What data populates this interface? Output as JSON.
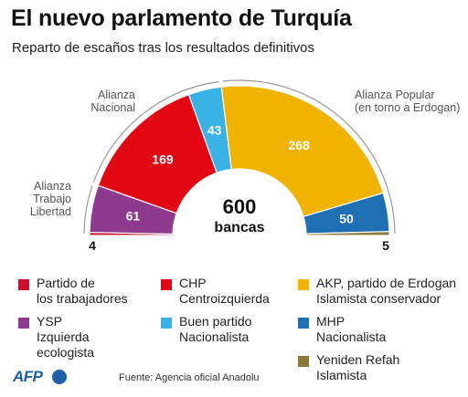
{
  "title": "El nuevo parlamento de Turquía",
  "subtitle": "Reparto de escaños tras los resultados definitivos",
  "total_value": "600",
  "total_label": "bancas",
  "chart_data": {
    "type": "pie",
    "variant": "half-donut (parliament)",
    "total": 600,
    "slices": [
      {
        "name": "Partido de los trabajadores",
        "value": 4,
        "color": "#c8102e",
        "label": "4"
      },
      {
        "name": "YSP Izquierda ecologista",
        "value": 61,
        "color": "#8e3a8e",
        "label": "61"
      },
      {
        "name": "CHP Centroizquierda",
        "value": 169,
        "color": "#e30613",
        "label": "169"
      },
      {
        "name": "Buen partido Nacionalista",
        "value": 43,
        "color": "#39b2e6",
        "label": "43"
      },
      {
        "name": "AKP, partido de Erdogan Islamista conservador",
        "value": 268,
        "color": "#f0b400",
        "label": "268"
      },
      {
        "name": "MHP Nacionalista",
        "value": 50,
        "color": "#1f6fb3",
        "label": "50"
      },
      {
        "name": "Yeniden Refah Islamista",
        "value": 5,
        "color": "#8a7a3a",
        "label": "5"
      }
    ],
    "alliances": [
      {
        "label": "Alianza\nTrabajo\nLibertad"
      },
      {
        "label": "Alianza\nNacional"
      },
      {
        "label": "Alianza Popular\n(en torno a Erdogan)"
      }
    ]
  },
  "legend": [
    {
      "label": "Partido de\nlos trabajadores",
      "color": "#c8102e"
    },
    {
      "label": "CHP\nCentroizquierda",
      "color": "#e30613"
    },
    {
      "label": "AKP, partido de Erdogan\nIslamista conservador",
      "color": "#f0b400"
    },
    {
      "label": "YSP\nIzquierda\necologista",
      "color": "#8e3a8e"
    },
    {
      "label": "Buen partido\nNacionalista",
      "color": "#39b2e6"
    },
    {
      "label": "MHP\nNacionalista",
      "color": "#1f6fb3"
    },
    {
      "label": "Yeniden Refah\nIslamista",
      "color": "#8a7a3a"
    }
  ],
  "source": "Fuente: Agencia oficial Anadolu",
  "logo": "AFP"
}
